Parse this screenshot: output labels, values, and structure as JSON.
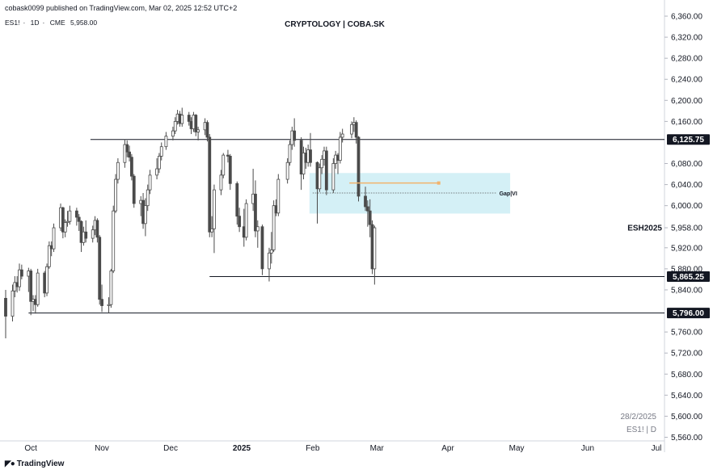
{
  "header": {
    "published": "cobask0099 published on TradingView.com, Mar 02, 2025 12:52 UTC+2",
    "symbol": "ES1!",
    "interval": "1D",
    "exchange": "CME",
    "last_price": "5,958.00"
  },
  "footer": {
    "brand": "TradingView",
    "logo_icon": "tradingview-logo-icon"
  },
  "watermark": {
    "date": "28/2/2025",
    "symbol": "ES1! | D"
  },
  "chart_data": {
    "type": "candlestick",
    "title": "CRYPTOLOGY | COBA.SK",
    "ylim": [
      5560,
      6360
    ],
    "y_ticks": [
      "6,360.00",
      "6,320.00",
      "6,280.00",
      "6,240.00",
      "6,200.00",
      "6,160.00",
      "6,080.00",
      "6,040.00",
      "6,000.00",
      "5,958.00",
      "5,920.00",
      "5,880.00",
      "5,840.00",
      "5,760.00",
      "5,720.00",
      "5,680.00",
      "5,640.00",
      "5,600.00",
      "5,560.00"
    ],
    "x_labels": [
      {
        "label": "Oct",
        "date": "2024-10-01"
      },
      {
        "label": "Nov",
        "date": "2024-11-01"
      },
      {
        "label": "Dec",
        "date": "2024-12-01"
      },
      {
        "label": "2025",
        "date": "2025-01-01",
        "bold": true
      },
      {
        "label": "Feb",
        "date": "2025-02-01"
      },
      {
        "label": "Mar",
        "date": "2025-03-01"
      },
      {
        "label": "Apr",
        "date": "2025-04-01"
      },
      {
        "label": "May",
        "date": "2025-05-01"
      },
      {
        "label": "Jun",
        "date": "2025-06-01"
      },
      {
        "label": "Jul",
        "date": "2025-07-01"
      }
    ],
    "x_range": [
      "2024-09-20",
      "2025-07-01"
    ],
    "levels": [
      {
        "price": 6125.75,
        "label": "6,125.75",
        "from": "2024-10-27"
      },
      {
        "price": 5865.25,
        "label": "5,865.25",
        "from": "2024-12-18"
      },
      {
        "price": 5796.0,
        "label": "5,796.00",
        "from": "2024-09-30"
      }
    ],
    "gap_zone": {
      "from": "2025-02-01",
      "to": "2025-05-01",
      "top": 6062,
      "bottom": 5985,
      "color": "#d4f0f6"
    },
    "gap_annotation": {
      "price": 6024,
      "from": "2025-02-01",
      "to": "2025-04-22",
      "label": "Gap|VI"
    },
    "orange_line": {
      "price": 6043,
      "from": "2025-02-17",
      "to": "2025-03-28",
      "color": "#f2b36d"
    },
    "last_price_label": "ESH2025",
    "up_color": "#ffffff",
    "down_color": "#4a4a4a",
    "candles": [
      {
        "d": "2024-09-20",
        "o": 5824,
        "h": 5840,
        "l": 5748,
        "c": 5790
      },
      {
        "d": "2024-09-23",
        "o": 5790,
        "h": 5850,
        "l": 5780,
        "c": 5838
      },
      {
        "d": "2024-09-24",
        "o": 5838,
        "h": 5866,
        "l": 5826,
        "c": 5854
      },
      {
        "d": "2024-09-25",
        "o": 5854,
        "h": 5866,
        "l": 5835,
        "c": 5846
      },
      {
        "d": "2024-09-26",
        "o": 5846,
        "h": 5890,
        "l": 5838,
        "c": 5878
      },
      {
        "d": "2024-09-27",
        "o": 5878,
        "h": 5888,
        "l": 5860,
        "c": 5866
      },
      {
        "d": "2024-09-30",
        "o": 5866,
        "h": 5882,
        "l": 5836,
        "c": 5876
      },
      {
        "d": "2024-10-01",
        "o": 5876,
        "h": 5880,
        "l": 5792,
        "c": 5818
      },
      {
        "d": "2024-10-02",
        "o": 5818,
        "h": 5830,
        "l": 5800,
        "c": 5822
      },
      {
        "d": "2024-10-03",
        "o": 5822,
        "h": 5830,
        "l": 5795,
        "c": 5812
      },
      {
        "d": "2024-10-04",
        "o": 5812,
        "h": 5880,
        "l": 5808,
        "c": 5872
      },
      {
        "d": "2024-10-07",
        "o": 5872,
        "h": 5876,
        "l": 5826,
        "c": 5834
      },
      {
        "d": "2024-10-08",
        "o": 5834,
        "h": 5890,
        "l": 5828,
        "c": 5884
      },
      {
        "d": "2024-10-09",
        "o": 5884,
        "h": 5932,
        "l": 5880,
        "c": 5924
      },
      {
        "d": "2024-10-10",
        "o": 5924,
        "h": 5932,
        "l": 5904,
        "c": 5918
      },
      {
        "d": "2024-10-11",
        "o": 5918,
        "h": 5966,
        "l": 5912,
        "c": 5958
      },
      {
        "d": "2024-10-14",
        "o": 5958,
        "h": 6004,
        "l": 5952,
        "c": 5996
      },
      {
        "d": "2024-10-15",
        "o": 5996,
        "h": 5998,
        "l": 5938,
        "c": 5950
      },
      {
        "d": "2024-10-16",
        "o": 5950,
        "h": 5974,
        "l": 5940,
        "c": 5968
      },
      {
        "d": "2024-10-17",
        "o": 5968,
        "h": 5990,
        "l": 5960,
        "c": 5970
      },
      {
        "d": "2024-10-18",
        "o": 5970,
        "h": 6000,
        "l": 5964,
        "c": 5990
      },
      {
        "d": "2024-10-21",
        "o": 5990,
        "h": 5996,
        "l": 5962,
        "c": 5978
      },
      {
        "d": "2024-10-22",
        "o": 5978,
        "h": 5984,
        "l": 5952,
        "c": 5970
      },
      {
        "d": "2024-10-23",
        "o": 5970,
        "h": 5972,
        "l": 5912,
        "c": 5930
      },
      {
        "d": "2024-10-24",
        "o": 5930,
        "h": 5960,
        "l": 5924,
        "c": 5950
      },
      {
        "d": "2024-10-25",
        "o": 5950,
        "h": 5972,
        "l": 5930,
        "c": 5938
      },
      {
        "d": "2024-10-28",
        "o": 5938,
        "h": 5962,
        "l": 5930,
        "c": 5954
      },
      {
        "d": "2024-10-29",
        "o": 5954,
        "h": 5980,
        "l": 5944,
        "c": 5972
      },
      {
        "d": "2024-10-30",
        "o": 5972,
        "h": 5976,
        "l": 5930,
        "c": 5940
      },
      {
        "d": "2024-10-31",
        "o": 5940,
        "h": 5944,
        "l": 5812,
        "c": 5822
      },
      {
        "d": "2024-11-01",
        "o": 5822,
        "h": 5850,
        "l": 5798,
        "c": 5810
      },
      {
        "d": "2024-11-04",
        "o": 5810,
        "h": 5826,
        "l": 5796,
        "c": 5812
      },
      {
        "d": "2024-11-05",
        "o": 5812,
        "h": 5880,
        "l": 5806,
        "c": 5876
      },
      {
        "d": "2024-11-06",
        "o": 5876,
        "h": 6000,
        "l": 5872,
        "c": 5990
      },
      {
        "d": "2024-11-07",
        "o": 5990,
        "h": 6060,
        "l": 5986,
        "c": 6050
      },
      {
        "d": "2024-11-08",
        "o": 6050,
        "h": 6090,
        "l": 6042,
        "c": 6082
      },
      {
        "d": "2024-11-11",
        "o": 6082,
        "h": 6126,
        "l": 6072,
        "c": 6116
      },
      {
        "d": "2024-11-12",
        "o": 6116,
        "h": 6124,
        "l": 6092,
        "c": 6102
      },
      {
        "d": "2024-11-13",
        "o": 6102,
        "h": 6114,
        "l": 6084,
        "c": 6092
      },
      {
        "d": "2024-11-14",
        "o": 6092,
        "h": 6098,
        "l": 6048,
        "c": 6056
      },
      {
        "d": "2024-11-15",
        "o": 6056,
        "h": 6060,
        "l": 5996,
        "c": 6004
      },
      {
        "d": "2024-11-18",
        "o": 6004,
        "h": 6018,
        "l": 5980,
        "c": 6010
      },
      {
        "d": "2024-11-19",
        "o": 6010,
        "h": 6024,
        "l": 5956,
        "c": 5966
      },
      {
        "d": "2024-11-20",
        "o": 5966,
        "h": 6014,
        "l": 5942,
        "c": 6000
      },
      {
        "d": "2024-11-21",
        "o": 6000,
        "h": 6040,
        "l": 5990,
        "c": 6030
      },
      {
        "d": "2024-11-22",
        "o": 6030,
        "h": 6068,
        "l": 6022,
        "c": 6058
      },
      {
        "d": "2024-11-25",
        "o": 6058,
        "h": 6090,
        "l": 6050,
        "c": 6070
      },
      {
        "d": "2024-11-26",
        "o": 6070,
        "h": 6100,
        "l": 6062,
        "c": 6094
      },
      {
        "d": "2024-11-27",
        "o": 6094,
        "h": 6120,
        "l": 6086,
        "c": 6112
      },
      {
        "d": "2024-11-29",
        "o": 6112,
        "h": 6140,
        "l": 6106,
        "c": 6132
      },
      {
        "d": "2024-12-02",
        "o": 6132,
        "h": 6150,
        "l": 6124,
        "c": 6142
      },
      {
        "d": "2024-12-03",
        "o": 6142,
        "h": 6168,
        "l": 6136,
        "c": 6160
      },
      {
        "d": "2024-12-04",
        "o": 6160,
        "h": 6182,
        "l": 6154,
        "c": 6174
      },
      {
        "d": "2024-12-05",
        "o": 6174,
        "h": 6180,
        "l": 6150,
        "c": 6156
      },
      {
        "d": "2024-12-06",
        "o": 6156,
        "h": 6186,
        "l": 6150,
        "c": 6172
      },
      {
        "d": "2024-12-09",
        "o": 6172,
        "h": 6178,
        "l": 6152,
        "c": 6160
      },
      {
        "d": "2024-12-10",
        "o": 6160,
        "h": 6168,
        "l": 6136,
        "c": 6146
      },
      {
        "d": "2024-12-11",
        "o": 6146,
        "h": 6178,
        "l": 6140,
        "c": 6172
      },
      {
        "d": "2024-12-12",
        "o": 6172,
        "h": 6174,
        "l": 6132,
        "c": 6140
      },
      {
        "d": "2024-12-13",
        "o": 6140,
        "h": 6150,
        "l": 6124,
        "c": 6144
      },
      {
        "d": "2024-12-16",
        "o": 6144,
        "h": 6166,
        "l": 6134,
        "c": 6158
      },
      {
        "d": "2024-12-17",
        "o": 6158,
        "h": 6162,
        "l": 6122,
        "c": 6130
      },
      {
        "d": "2024-12-18",
        "o": 6130,
        "h": 6136,
        "l": 5940,
        "c": 5950
      },
      {
        "d": "2024-12-19",
        "o": 5950,
        "h": 5980,
        "l": 5940,
        "c": 5956
      },
      {
        "d": "2024-12-20",
        "o": 5956,
        "h": 6040,
        "l": 5910,
        "c": 6030
      },
      {
        "d": "2024-12-23",
        "o": 6030,
        "h": 6068,
        "l": 6020,
        "c": 6058
      },
      {
        "d": "2024-12-24",
        "o": 6058,
        "h": 6100,
        "l": 6052,
        "c": 6096
      },
      {
        "d": "2024-12-26",
        "o": 6096,
        "h": 6106,
        "l": 6082,
        "c": 6094
      },
      {
        "d": "2024-12-27",
        "o": 6094,
        "h": 6098,
        "l": 6030,
        "c": 6042
      },
      {
        "d": "2024-12-30",
        "o": 6042,
        "h": 6046,
        "l": 5964,
        "c": 5980
      },
      {
        "d": "2024-12-31",
        "o": 5980,
        "h": 5996,
        "l": 5950,
        "c": 5960
      },
      {
        "d": "2025-01-02",
        "o": 5960,
        "h": 5994,
        "l": 5922,
        "c": 5940
      },
      {
        "d": "2025-01-03",
        "o": 5940,
        "h": 6012,
        "l": 5934,
        "c": 6004
      },
      {
        "d": "2025-01-06",
        "o": 6004,
        "h": 6070,
        "l": 5990,
        "c": 6022
      },
      {
        "d": "2025-01-07",
        "o": 6022,
        "h": 6048,
        "l": 5940,
        "c": 5952
      },
      {
        "d": "2025-01-08",
        "o": 5952,
        "h": 5972,
        "l": 5920,
        "c": 5960
      },
      {
        "d": "2025-01-10",
        "o": 5960,
        "h": 5964,
        "l": 5868,
        "c": 5880
      },
      {
        "d": "2025-01-13",
        "o": 5880,
        "h": 5920,
        "l": 5856,
        "c": 5910
      },
      {
        "d": "2025-01-14",
        "o": 5910,
        "h": 5950,
        "l": 5890,
        "c": 5916
      },
      {
        "d": "2025-01-15",
        "o": 5916,
        "h": 6010,
        "l": 5912,
        "c": 6000
      },
      {
        "d": "2025-01-16",
        "o": 6000,
        "h": 6012,
        "l": 5980,
        "c": 5986
      },
      {
        "d": "2025-01-17",
        "o": 5986,
        "h": 6060,
        "l": 5980,
        "c": 6050
      },
      {
        "d": "2025-01-21",
        "o": 6050,
        "h": 6090,
        "l": 6042,
        "c": 6082
      },
      {
        "d": "2025-01-22",
        "o": 6082,
        "h": 6124,
        "l": 6076,
        "c": 6116
      },
      {
        "d": "2025-01-23",
        "o": 6116,
        "h": 6150,
        "l": 6106,
        "c": 6142
      },
      {
        "d": "2025-01-24",
        "o": 6142,
        "h": 6166,
        "l": 6112,
        "c": 6124
      },
      {
        "d": "2025-01-27",
        "o": 6124,
        "h": 6130,
        "l": 6030,
        "c": 6060
      },
      {
        "d": "2025-01-28",
        "o": 6060,
        "h": 6112,
        "l": 6050,
        "c": 6100
      },
      {
        "d": "2025-01-29",
        "o": 6100,
        "h": 6110,
        "l": 6070,
        "c": 6082
      },
      {
        "d": "2025-01-30",
        "o": 6082,
        "h": 6116,
        "l": 6074,
        "c": 6106
      },
      {
        "d": "2025-01-31",
        "o": 6106,
        "h": 6138,
        "l": 6074,
        "c": 6082
      },
      {
        "d": "2025-02-03",
        "o": 6082,
        "h": 6084,
        "l": 5966,
        "c": 6032
      },
      {
        "d": "2025-02-04",
        "o": 6032,
        "h": 6080,
        "l": 6026,
        "c": 6072
      },
      {
        "d": "2025-02-05",
        "o": 6072,
        "h": 6096,
        "l": 6060,
        "c": 6088
      },
      {
        "d": "2025-02-06",
        "o": 6088,
        "h": 6112,
        "l": 6076,
        "c": 6104
      },
      {
        "d": "2025-02-07",
        "o": 6104,
        "h": 6112,
        "l": 6020,
        "c": 6030
      },
      {
        "d": "2025-02-10",
        "o": 6030,
        "h": 6090,
        "l": 6024,
        "c": 6080
      },
      {
        "d": "2025-02-11",
        "o": 6080,
        "h": 6104,
        "l": 6070,
        "c": 6096
      },
      {
        "d": "2025-02-12",
        "o": 6096,
        "h": 6100,
        "l": 6060,
        "c": 6086
      },
      {
        "d": "2025-02-13",
        "o": 6086,
        "h": 6140,
        "l": 6080,
        "c": 6130
      },
      {
        "d": "2025-02-14",
        "o": 6130,
        "h": 6146,
        "l": 6120,
        "c": 6136
      },
      {
        "d": "2025-02-18",
        "o": 6136,
        "h": 6160,
        "l": 6128,
        "c": 6154
      },
      {
        "d": "2025-02-19",
        "o": 6154,
        "h": 6168,
        "l": 6140,
        "c": 6158
      },
      {
        "d": "2025-02-20",
        "o": 6158,
        "h": 6162,
        "l": 6118,
        "c": 6130
      },
      {
        "d": "2025-02-21",
        "o": 6130,
        "h": 6132,
        "l": 6008,
        "c": 6018
      },
      {
        "d": "2025-02-24",
        "o": 6018,
        "h": 6036,
        "l": 5990,
        "c": 5998
      },
      {
        "d": "2025-02-25",
        "o": 5998,
        "h": 6010,
        "l": 5960,
        "c": 5990
      },
      {
        "d": "2025-02-26",
        "o": 5990,
        "h": 6012,
        "l": 5940,
        "c": 5964
      },
      {
        "d": "2025-02-27",
        "o": 5964,
        "h": 5972,
        "l": 5870,
        "c": 5880
      },
      {
        "d": "2025-02-28",
        "o": 5880,
        "h": 5962,
        "l": 5850,
        "c": 5958
      }
    ]
  }
}
